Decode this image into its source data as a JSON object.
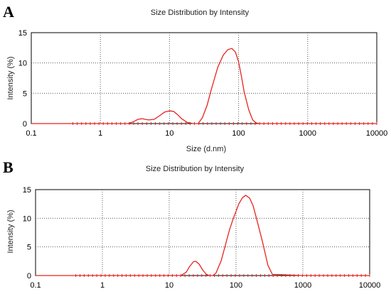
{
  "chart_data": [
    {
      "panel_label": "A",
      "type": "line",
      "title": "Size Distribution by Intensity",
      "xlabel": "Size (d.nm)",
      "ylabel": "Intensity (%)",
      "xscale": "log",
      "xlim": [
        0.1,
        10000
      ],
      "ylim": [
        0,
        15
      ],
      "x_ticks": [
        "0.1",
        "1",
        "10",
        "100",
        "1000",
        "10000"
      ],
      "y_ticks": [
        "0",
        "5",
        "10",
        "15"
      ],
      "grid": "dotted",
      "line_color": "#e8231f",
      "marker_color": "#e8231f",
      "x_marker_start": 0.4,
      "series": [
        {
          "x": [
            0.1,
            0.4,
            1,
            2.5,
            3.0,
            3.5,
            4.0,
            5.0,
            6.0,
            7.0,
            8.5,
            10,
            11.5,
            13,
            15,
            18,
            22,
            26,
            30,
            35,
            40,
            45,
            50,
            60,
            70,
            80,
            90,
            100,
            110,
            120,
            140,
            160,
            180,
            200,
            1000,
            10000
          ],
          "y": [
            0,
            0,
            0,
            0,
            0.3,
            0.7,
            0.8,
            0.6,
            0.7,
            1.2,
            1.9,
            2.1,
            2.0,
            1.5,
            0.8,
            0.2,
            0,
            0,
            1.0,
            3.0,
            5.5,
            7.5,
            9.3,
            11.3,
            12.2,
            12.4,
            11.8,
            10.2,
            7.8,
            5.3,
            2.3,
            0.6,
            0.1,
            0,
            0,
            0
          ]
        }
      ]
    },
    {
      "panel_label": "B",
      "type": "line",
      "title": "Size Distribution by Intensity",
      "xlabel": "",
      "ylabel": "Intensity (%)",
      "xscale": "log",
      "xlim": [
        0.1,
        10000
      ],
      "ylim": [
        0,
        15
      ],
      "x_ticks": [
        "0.1",
        "1",
        "10",
        "100",
        "1000",
        "10000"
      ],
      "y_ticks": [
        "0",
        "5",
        "10",
        "15"
      ],
      "grid": "dotted",
      "line_color": "#e8231f",
      "marker_color": "#e8231f",
      "x_marker_start": 0.4,
      "series": [
        {
          "x": [
            0.1,
            0.4,
            1,
            10,
            15,
            18,
            20,
            23,
            25,
            28,
            32,
            36,
            40,
            45,
            50,
            60,
            70,
            80,
            90,
            100,
            110,
            125,
            140,
            160,
            180,
            200,
            250,
            300,
            350,
            1000,
            10000
          ],
          "y": [
            0,
            0,
            0,
            0,
            0,
            0.6,
            1.5,
            2.4,
            2.5,
            2.0,
            0.9,
            0.2,
            0,
            0,
            0.4,
            2.6,
            5.5,
            8.0,
            9.8,
            11.2,
            12.5,
            13.6,
            14.0,
            13.5,
            12.2,
            10.2,
            5.8,
            1.8,
            0.2,
            0,
            0
          ]
        }
      ]
    }
  ]
}
